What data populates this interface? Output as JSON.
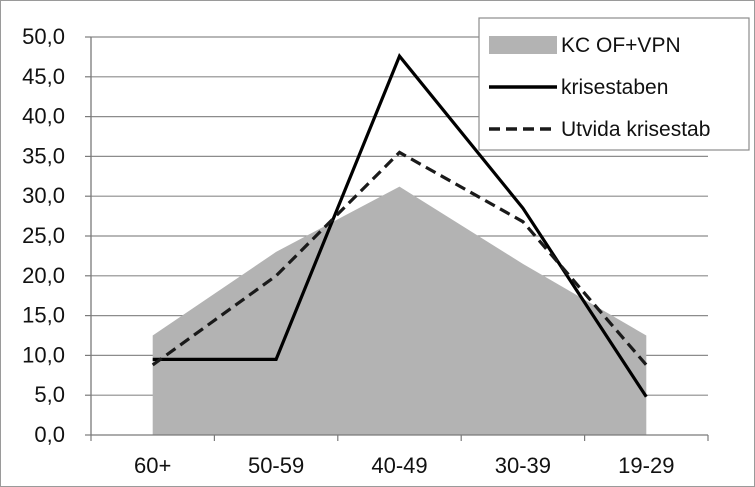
{
  "chart_data": {
    "type": "line",
    "categories": [
      "60+",
      "50-59",
      "40-49",
      "30-39",
      "19-29"
    ],
    "ylim": [
      0,
      50
    ],
    "yticks": [
      "0,0",
      "5,0",
      "10,0",
      "15,0",
      "20,0",
      "25,0",
      "30,0",
      "35,0",
      "40,0",
      "45,0",
      "50,0"
    ],
    "grid": true,
    "legend_position": "top-right",
    "series": [
      {
        "name": "KC OF+VPN",
        "style": "area",
        "color": "#b3b3b3",
        "values": [
          12.5,
          23.0,
          31.2,
          21.5,
          12.5
        ]
      },
      {
        "name": "krisestaben",
        "style": "solid",
        "color": "#000000",
        "values": [
          9.5,
          9.5,
          47.6,
          28.5,
          4.8
        ]
      },
      {
        "name": "Utvida krisestab",
        "style": "dashed",
        "color": "#1a1a1a",
        "values": [
          8.8,
          20.0,
          35.5,
          26.8,
          8.8
        ]
      }
    ]
  }
}
